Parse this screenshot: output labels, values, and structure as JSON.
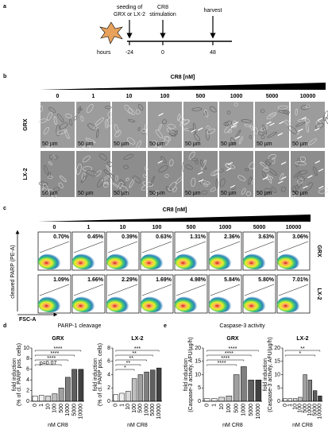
{
  "panel_labels": [
    "a",
    "b",
    "c",
    "d",
    "e"
  ],
  "timeline": {
    "seeding": [
      "seeding of",
      "GRX or LX-2"
    ],
    "stimulation": [
      "CR8",
      "stimulation"
    ],
    "harvest": "harvest",
    "hours_label": "hours",
    "hours": [
      "-24",
      "0",
      "48"
    ]
  },
  "microscopy": {
    "dose_label": "CR8 [nM]",
    "doses": [
      "0",
      "1",
      "10",
      "100",
      "500",
      "1000",
      "5000",
      "10000"
    ],
    "rows": [
      "GRX",
      "LX-2"
    ],
    "scale": "50 µm"
  },
  "flow": {
    "dose_label": "CR8 [nM]",
    "doses": [
      "0",
      "1",
      "10",
      "100",
      "500",
      "1000",
      "5000",
      "10000"
    ],
    "y_label": "cleaved PARP (PE-A)",
    "x_label": "FSC-A",
    "rows": [
      {
        "name": "GRX",
        "percentages": [
          "0.70%",
          "0.45%",
          "0.39%",
          "0.63%",
          "1.31%",
          "2.36%",
          "3.63%",
          "3.06%"
        ]
      },
      {
        "name": "LX-2",
        "percentages": [
          "1.09%",
          "1.66%",
          "2.29%",
          "1.69%",
          "4.98%",
          "5.84%",
          "5.80%",
          "7.01%"
        ]
      }
    ]
  },
  "parp_title": "PARP-1 cleavage",
  "caspase_title": "Caspase-3 activity",
  "chart_data": [
    {
      "type": "bar",
      "title": "GRX",
      "ylabel": [
        "fold induction",
        "(% of cl. PARP pos. cells)"
      ],
      "xlabel": "nM CR8",
      "categories": [
        "0",
        "1",
        "10",
        "100",
        "500",
        "1000",
        "5000",
        "10000"
      ],
      "values": [
        1,
        1.1,
        1,
        1.4,
        2.5,
        4.5,
        6,
        6
      ],
      "colors": [
        "#ffffff",
        "#eeeeee",
        "#d9d9d9",
        "#bfbfbf",
        "#a0a0a0",
        "#7f7f7f",
        "#5f5f5f",
        "#404040"
      ],
      "ylim": [
        0,
        10
      ],
      "yticks": [
        0,
        2,
        4,
        6,
        8,
        10
      ],
      "significance": [
        "****",
        "****",
        "****",
        "p=0.07"
      ]
    },
    {
      "type": "bar",
      "title": "LX-2",
      "ylabel": [
        "fold induction",
        "(% of cl. PARP pos. cells)"
      ],
      "xlabel": "nM CR8",
      "categories": [
        "0",
        "1",
        "10",
        "100",
        "500",
        "1000",
        "5000",
        "10000"
      ],
      "values": [
        1,
        1.2,
        1.5,
        3.4,
        4,
        4.4,
        4.7,
        5
      ],
      "colors": [
        "#ffffff",
        "#eeeeee",
        "#d9d9d9",
        "#bfbfbf",
        "#a0a0a0",
        "#7f7f7f",
        "#5f5f5f",
        "#404040"
      ],
      "ylim": [
        0,
        8
      ],
      "yticks": [
        0,
        2,
        4,
        6,
        8
      ],
      "significance": [
        "***",
        "**",
        "**",
        "**",
        "*"
      ]
    },
    {
      "type": "bar",
      "title": "GRX",
      "ylabel": [
        "fold induction",
        "(Caspase-3 activity, AFU/µg/h)"
      ],
      "xlabel": "nM CR8",
      "categories": [
        "0",
        "1",
        "10",
        "100",
        "500",
        "1000",
        "5000",
        "10000"
      ],
      "values": [
        1,
        1,
        1.5,
        2,
        10,
        13,
        8,
        8
      ],
      "colors": [
        "#ffffff",
        "#eeeeee",
        "#d9d9d9",
        "#bfbfbf",
        "#a0a0a0",
        "#7f7f7f",
        "#5f5f5f",
        "#404040"
      ],
      "ylim": [
        0,
        20
      ],
      "yticks": [
        0,
        5,
        10,
        15,
        20
      ],
      "significance": [
        "****",
        "****",
        "****",
        "****"
      ]
    },
    {
      "type": "bar",
      "title": "LX-2",
      "ylabel": [
        "fold induction",
        "(Caspase-3 activity, AFU/µg/h)"
      ],
      "xlabel": "nM CR8",
      "categories": [
        "0",
        "1",
        "10",
        "100",
        "500",
        "1000",
        "5000",
        "10000"
      ],
      "values": [
        1,
        1,
        1,
        1.5,
        10,
        8,
        4,
        2
      ],
      "colors": [
        "#ffffff",
        "#eeeeee",
        "#d9d9d9",
        "#bfbfbf",
        "#a0a0a0",
        "#7f7f7f",
        "#5f5f5f",
        "#404040"
      ],
      "ylim": [
        0,
        20
      ],
      "yticks": [
        0,
        5,
        10,
        15,
        20
      ],
      "significance": [
        "**",
        "*"
      ]
    }
  ]
}
